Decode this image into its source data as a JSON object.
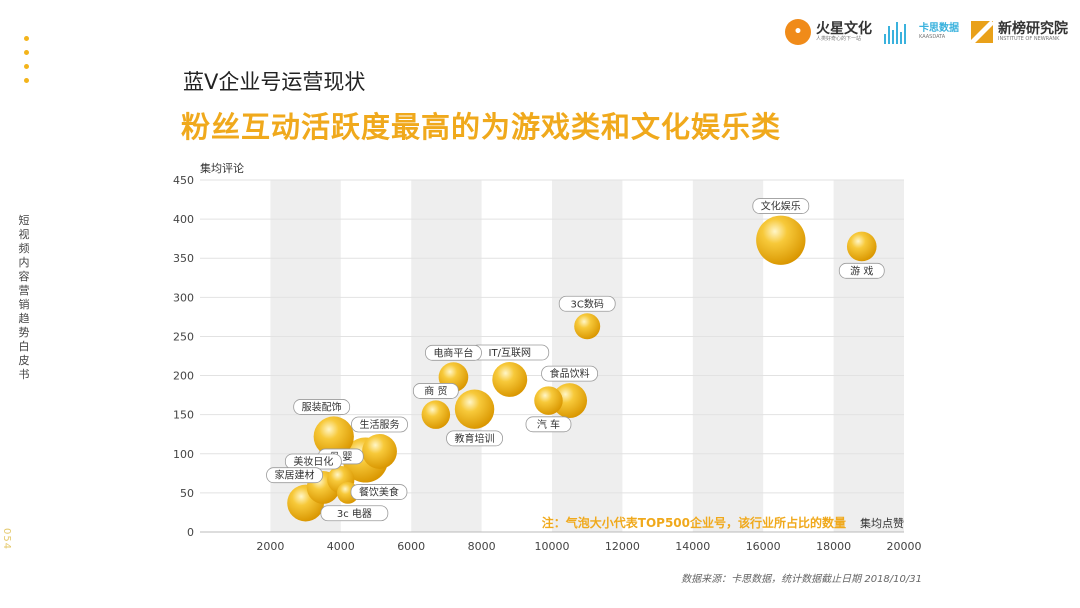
{
  "brand": {
    "logo1_name": "火星文化",
    "logo1_sub": "人类好奇心的下一站",
    "logo2_name": "卡思数据",
    "logo2_sub": "KAASDATA",
    "logo3_name": "新榜研究院",
    "logo3_sub": "INSTITUTE OF NEWRANK"
  },
  "sidebar_text": "短视频内容营销趋势白皮书",
  "page_number": "054",
  "subtitle": "蓝V企业号运营现状",
  "headline": "粉丝互动活跃度最高的为游戏类和文化娱乐类",
  "source": "数据来源：卡思数据，统计数据截止日期 2018/10/31",
  "colors": {
    "accent": "#f0a91c",
    "bubble": "#f3b41b",
    "band": "#eeeeee"
  },
  "chart_data": {
    "type": "bubble",
    "ylabel": "集均评论",
    "xlabel": "集均点赞",
    "xlim": [
      0,
      20000
    ],
    "ylim": [
      0,
      450
    ],
    "xticks": [
      2000,
      4000,
      6000,
      8000,
      10000,
      12000,
      14000,
      16000,
      18000,
      20000
    ],
    "yticks": [
      0,
      50,
      100,
      150,
      200,
      250,
      300,
      350,
      400,
      450
    ],
    "note": "注：气泡大小代表TOP500企业号，该行业所占比的数量",
    "points": [
      {
        "label": "文化娱乐",
        "x": 16500,
        "y": 373,
        "size": 3.6
      },
      {
        "label": "游 戏",
        "x": 18800,
        "y": 365,
        "size": 1.3
      },
      {
        "label": "3C数码",
        "x": 11000,
        "y": 263,
        "size": 1.0
      },
      {
        "label": "IT/互联网",
        "x": 8800,
        "y": 195,
        "size": 1.8
      },
      {
        "label": "电商平台",
        "x": 7200,
        "y": 198,
        "size": 1.3
      },
      {
        "label": "食品饮料",
        "x": 10500,
        "y": 168,
        "size": 1.8
      },
      {
        "label": "汽 车",
        "x": 9900,
        "y": 168,
        "size": 1.2
      },
      {
        "label": "商 贸",
        "x": 6700,
        "y": 150,
        "size": 1.2
      },
      {
        "label": "教育培训",
        "x": 7800,
        "y": 157,
        "size": 2.3
      },
      {
        "label": "服装配饰",
        "x": 3800,
        "y": 122,
        "size": 2.4
      },
      {
        "label": "生活服务",
        "x": 5100,
        "y": 103,
        "size": 1.8
      },
      {
        "label": "餐饮美食",
        "x": 4700,
        "y": 92,
        "size": 3.0
      },
      {
        "label": "母 婴",
        "x": 4000,
        "y": 67,
        "size": 1.1
      },
      {
        "label": "美妆日化",
        "x": 3500,
        "y": 57,
        "size": 1.6
      },
      {
        "label": "家居建材",
        "x": 3000,
        "y": 37,
        "size": 2.0
      },
      {
        "label": "3c 电器",
        "x": 4200,
        "y": 50,
        "size": 0.7
      }
    ]
  }
}
